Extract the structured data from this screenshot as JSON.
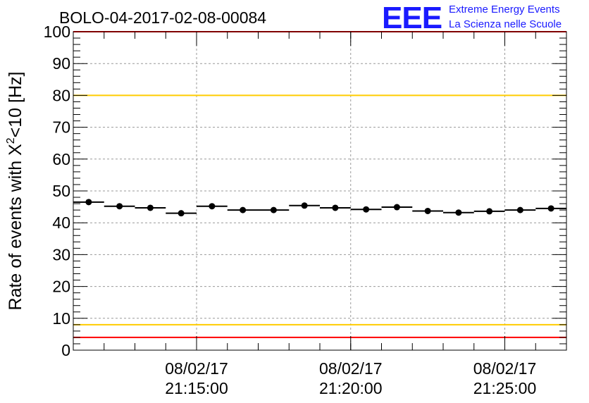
{
  "header": {
    "title": "BOLO-04-2017-02-08-00084",
    "logo_text": "EEE",
    "logo_line1": "Extreme Energy Events",
    "logo_line2": "La Scienza nelle Scuole"
  },
  "colors": {
    "logo": "#1a1aff",
    "red_limit": "#ff0000",
    "yellow_limit": "#ffcc00",
    "grid": "#999999",
    "markers": "#000000"
  },
  "chart_data": {
    "type": "scatter",
    "title": "BOLO-04-2017-02-08-00084",
    "ylabel_prefix": "Rate of events with X",
    "ylabel_sup": "2",
    "ylabel_suffix": "<10 [Hz]",
    "xlabel": "",
    "ylim": [
      0,
      100
    ],
    "y_ticks": [
      0,
      10,
      20,
      30,
      40,
      50,
      60,
      70,
      80,
      90,
      100
    ],
    "x_axis": "time",
    "xlim": [
      "2017-02-08 21:11:00",
      "2017-02-08 21:27:00"
    ],
    "x_ticks": [
      {
        "time": "2017-02-08 21:15:00",
        "date_label": "08/02/17",
        "time_label": "21:15:00"
      },
      {
        "time": "2017-02-08 21:20:00",
        "date_label": "08/02/17",
        "time_label": "21:20:00"
      },
      {
        "time": "2017-02-08 21:25:00",
        "date_label": "08/02/17",
        "time_label": "21:25:00"
      }
    ],
    "grid": true,
    "reference_lines": [
      {
        "y": 100,
        "color": "red"
      },
      {
        "y": 80,
        "color": "yellow"
      },
      {
        "y": 8,
        "color": "yellow"
      },
      {
        "y": 4,
        "color": "red"
      }
    ],
    "series": [
      {
        "points": [
          {
            "x_start": "21:11:00",
            "x_end": "21:12:00",
            "y": 46.5
          },
          {
            "x_start": "21:12:00",
            "x_end": "21:13:00",
            "y": 45.2
          },
          {
            "x_start": "21:13:00",
            "x_end": "21:14:00",
            "y": 44.7
          },
          {
            "x_start": "21:14:00",
            "x_end": "21:15:00",
            "y": 43.0
          },
          {
            "x_start": "21:15:00",
            "x_end": "21:16:00",
            "y": 45.2
          },
          {
            "x_start": "21:16:00",
            "x_end": "21:17:00",
            "y": 44.0
          },
          {
            "x_start": "21:17:00",
            "x_end": "21:18:00",
            "y": 44.0
          },
          {
            "x_start": "21:18:00",
            "x_end": "21:19:00",
            "y": 45.4
          },
          {
            "x_start": "21:19:00",
            "x_end": "21:20:00",
            "y": 44.7
          },
          {
            "x_start": "21:20:00",
            "x_end": "21:21:00",
            "y": 44.2
          },
          {
            "x_start": "21:21:00",
            "x_end": "21:22:00",
            "y": 44.9
          },
          {
            "x_start": "21:22:00",
            "x_end": "21:23:00",
            "y": 43.7
          },
          {
            "x_start": "21:23:00",
            "x_end": "21:24:00",
            "y": 43.2
          },
          {
            "x_start": "21:24:00",
            "x_end": "21:25:00",
            "y": 43.6
          },
          {
            "x_start": "21:25:00",
            "x_end": "21:26:00",
            "y": 44.0
          },
          {
            "x_start": "21:26:00",
            "x_end": "21:27:00",
            "y": 44.5
          }
        ]
      }
    ]
  }
}
